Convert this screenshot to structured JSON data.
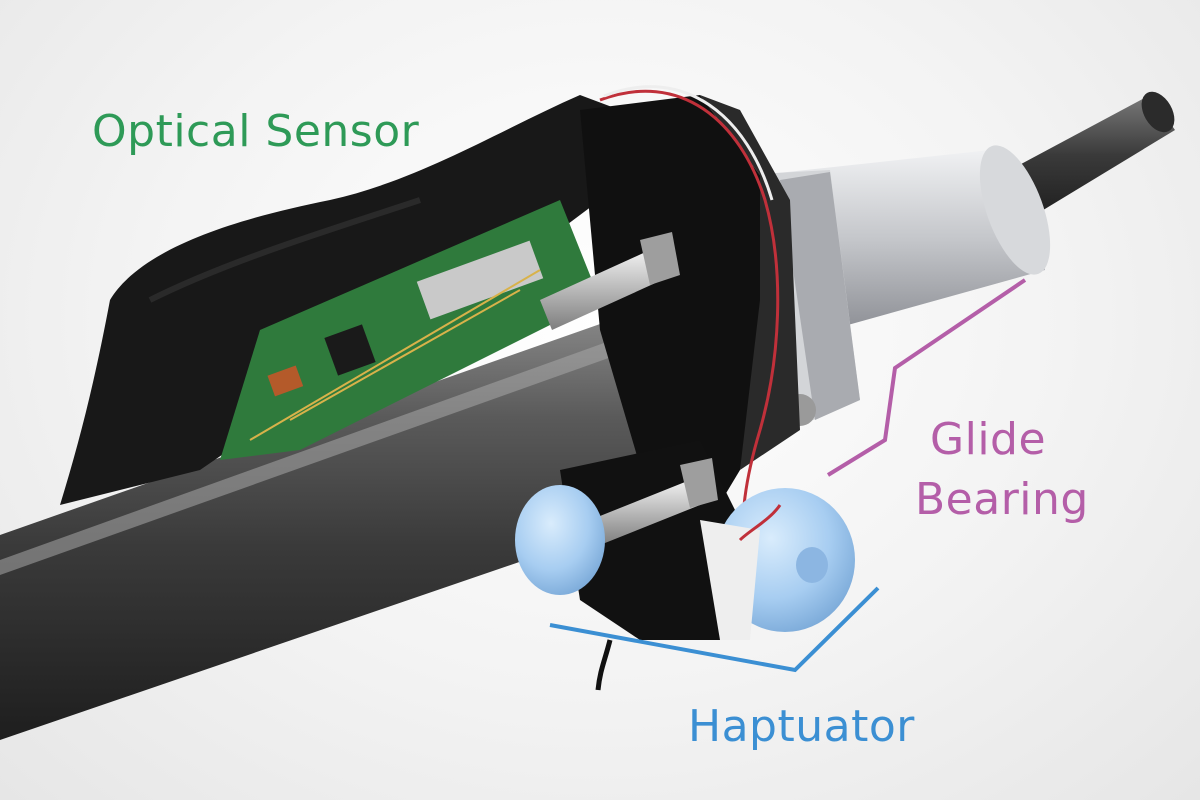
{
  "labels": {
    "optical_sensor": {
      "text": "Optical Sensor",
      "color": "#2e9a57"
    },
    "glide_bearing": {
      "line1": "Glide",
      "line2": "Bearing",
      "color": "#b45ea8"
    },
    "haptuator": {
      "text": "Haptuator",
      "color": "#3b8fd3"
    }
  },
  "colors": {
    "background": "#f2f2f2",
    "rod": "#4a4a4a",
    "fabric": "#1a1a1a",
    "pcb": "#2f7a3c",
    "aluminum": "#c9cbcf",
    "foam": "#9cc6ee"
  }
}
